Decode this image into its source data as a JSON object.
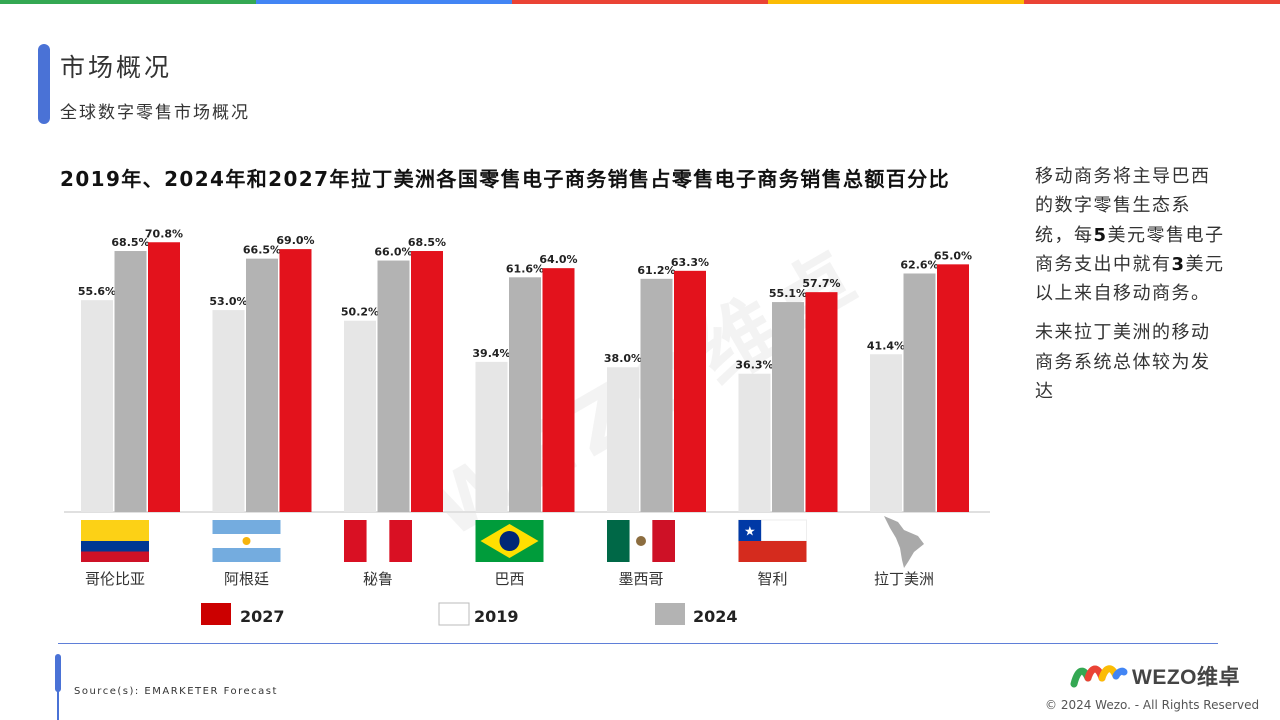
{
  "header": {
    "title": "市场概况",
    "subtitle": "全球数字零售市场概况",
    "accent_colors": [
      "#34a853",
      "#4285f4",
      "#ea4335",
      "#fbbc05",
      "#ea4335"
    ]
  },
  "chart_title_parts": {
    "y1": "2019",
    "sep1": "年、",
    "y2": "2024",
    "sep2": "年和",
    "y3": "2027",
    "rest": "年拉丁美洲各国零售电子商务销售占零售电子商务销售总额百分比"
  },
  "chart_data": {
    "type": "bar",
    "title": "2019年、2024年和2027年拉丁美洲各国零售电子商务销售占零售电子商务销售总额百分比",
    "categories": [
      "哥伦比亚",
      "阿根廷",
      "秘鲁",
      "巴西",
      "墨西哥",
      "智利",
      "拉丁美洲"
    ],
    "series": [
      {
        "name": "2019",
        "color": "#e6e6e6",
        "values": [
          55.6,
          53.0,
          50.2,
          39.4,
          38.0,
          36.3,
          41.4
        ]
      },
      {
        "name": "2024",
        "color": "#b3b3b3",
        "values": [
          68.5,
          66.5,
          66.0,
          61.6,
          61.2,
          55.1,
          62.6
        ]
      },
      {
        "name": "2027",
        "color": "#e3121c",
        "values": [
          70.8,
          69.0,
          68.5,
          64.0,
          63.3,
          57.7,
          65.0
        ]
      }
    ],
    "value_labels": [
      [
        "55.6%",
        "68.5%",
        "70.8%"
      ],
      [
        "53.0%",
        "66.5%",
        "69.0%"
      ],
      [
        "50.2%",
        "66.0%",
        "68.5%"
      ],
      [
        "39.4%",
        "61.6%",
        "64.0%"
      ],
      [
        "38.0%",
        "61.2%",
        "63.3%"
      ],
      [
        "36.3%",
        "55.1%",
        "57.7%"
      ],
      [
        "41.4%",
        "62.6%",
        "65.0%"
      ]
    ],
    "legend": [
      {
        "name": "2027",
        "color": "#cc0000"
      },
      {
        "name": "2019",
        "color": "#ffffff"
      },
      {
        "name": "2024",
        "color": "#b3b3b3"
      }
    ],
    "legend_position": "bottom",
    "flags": [
      "colombia-flag",
      "argentina-flag",
      "peru-flag",
      "brazil-flag",
      "mexico-flag",
      "chile-flag",
      "latin-america-map"
    ],
    "ylim": [
      0,
      80
    ],
    "grid": false
  },
  "side": {
    "p1": [
      "移动商务将主导巴西的数字零售生态系统，每",
      "5",
      "美元零售电子商务支出中就有",
      "3",
      "美元以上来自移动商务。"
    ],
    "p2": "未来拉丁美洲的移动商务系统总体较为发达"
  },
  "footer": {
    "source": "Source(s): EMARKETER Forecast",
    "logo_text": "WEZO维卓",
    "copyright": "© 2024 Wezo. - All Rights Reserved"
  }
}
